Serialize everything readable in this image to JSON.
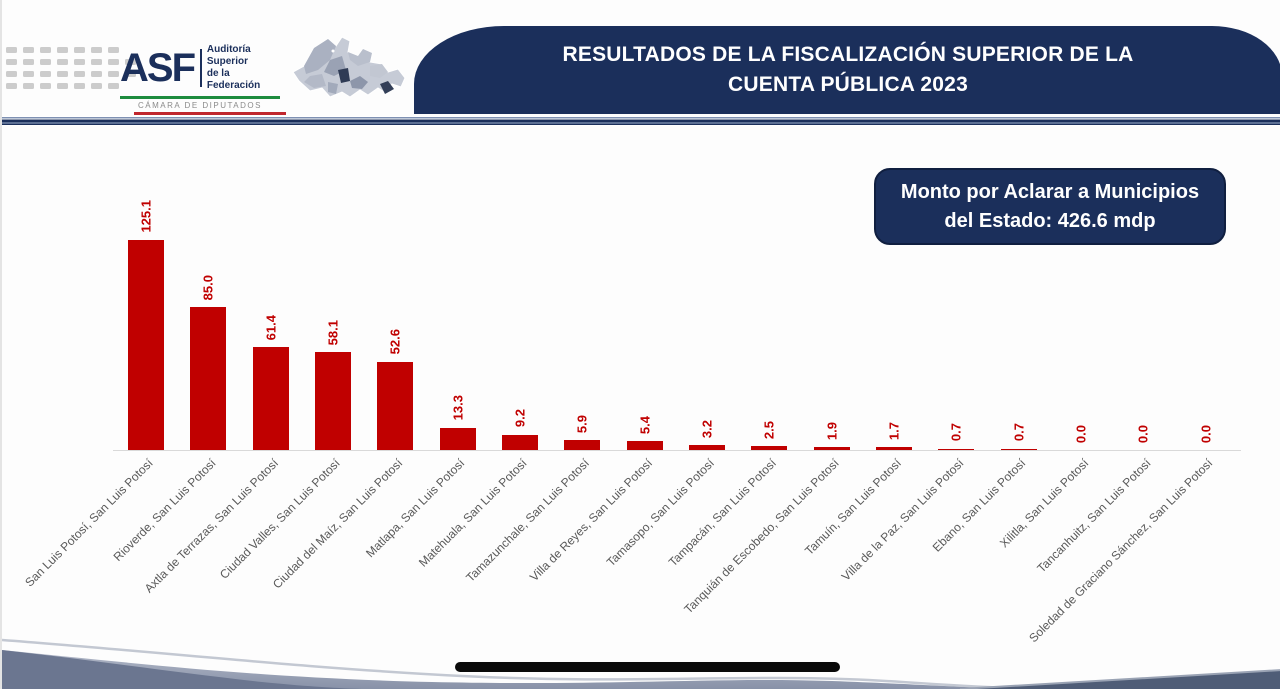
{
  "header": {
    "logo": {
      "abbr": "ASF",
      "name_line1": "Auditoría",
      "name_line2": "Superior",
      "name_line3": "de la Federación",
      "chamber": "CÁMARA DE DIPUTADOS"
    },
    "map_icon": "san-luis-potosi-state-map",
    "title_line1": "RESULTADOS DE LA FISCALIZACIÓN SUPERIOR DE LA",
    "title_line2": "CUENTA PÚBLICA 2023"
  },
  "callout": {
    "line1": "Monto por Aclarar a Municipios",
    "line2": "del Estado: 426.6 mdp"
  },
  "chart_data": {
    "type": "bar",
    "title": "Monto por Aclarar a Municipios del Estado: 426.6 mdp",
    "categories": [
      "San Luis Potosí, San Luis Potosí",
      "Rioverde, San Luis Potosí",
      "Axtla de Terrazas, San Luis Potosí",
      "Ciudad Valles, San Luis Potosí",
      "Ciudad del Maíz, San Luis Potosí",
      "Matlapa, San Luis Potosí",
      "Matehuala, San Luis Potosí",
      "Tamazunchale, San Luis Potosí",
      "Villa de Reyes, San Luis Potosí",
      "Tamasopo, San Luis Potosí",
      "Tampacán, San Luis Potosí",
      "Tanquián de Escobedo, San Luis Potosí",
      "Tamuín, San Luis Potosí",
      "Villa de la Paz, San Luis Potosí",
      "Ebano, San Luis Potosí",
      "Xilitla, San Luis Potosí",
      "Tancanhuitz, San Luis Potosí",
      "Soledad de Graciano Sánchez, San Luis Potosí"
    ],
    "values": [
      125.1,
      85.0,
      61.4,
      58.1,
      52.6,
      13.3,
      9.2,
      5.9,
      5.4,
      3.2,
      2.5,
      1.9,
      1.7,
      0.7,
      0.7,
      0.0,
      0.0,
      0.0
    ],
    "value_labels": [
      "125.1",
      "85.0",
      "61.4",
      "58.1",
      "52.6",
      "13.3",
      "9.2",
      "5.9",
      "5.4",
      "3.2",
      "2.5",
      "1.9",
      "1.7",
      "0.7",
      "0.7",
      "0.0",
      "0.0",
      "0.0"
    ],
    "xlabel": "",
    "ylabel": "",
    "ylim": [
      0,
      135
    ],
    "grid": false,
    "legend": false,
    "bar_color": "#c00000",
    "data_label_color": "#c00000",
    "category_label_color": "#595959",
    "axis_color": "#d9d9d9"
  },
  "colors": {
    "navy": "#1b2f5b",
    "bar_red": "#c00000",
    "logo_green": "#1e8c3e",
    "logo_red": "#c0272d",
    "wave_gray_blue": "#98a1b5",
    "wave_dark": "#4f5d77"
  },
  "decor": {
    "dots_rows": [
      7,
      8,
      8,
      7
    ]
  }
}
